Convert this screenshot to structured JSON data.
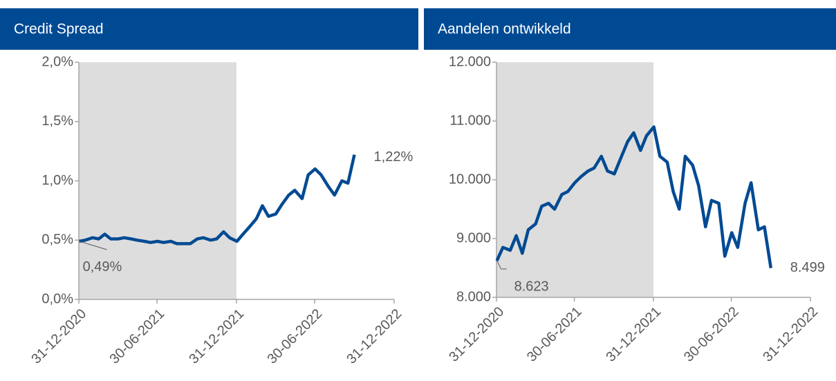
{
  "chart_data": [
    {
      "type": "line",
      "title": "Credit Spread",
      "color": "#004A93",
      "shaded_range": [
        "2020-12-31",
        "2021-12-31"
      ],
      "x": [
        "2021-01-01",
        "2021-01-15",
        "2021-02-01",
        "2021-02-15",
        "2021-03-01",
        "2021-03-15",
        "2021-04-01",
        "2021-04-15",
        "2021-05-01",
        "2021-05-15",
        "2021-06-01",
        "2021-06-15",
        "2021-07-01",
        "2021-07-15",
        "2021-08-01",
        "2021-08-15",
        "2021-09-01",
        "2021-09-15",
        "2021-10-01",
        "2021-10-15",
        "2021-11-01",
        "2021-11-15",
        "2021-12-01",
        "2021-12-15",
        "2022-01-01",
        "2022-01-15",
        "2022-02-01",
        "2022-02-15",
        "2022-03-01",
        "2022-03-15",
        "2022-04-01",
        "2022-04-15",
        "2022-05-01",
        "2022-05-15",
        "2022-06-01",
        "2022-06-15",
        "2022-07-01",
        "2022-07-15",
        "2022-08-01",
        "2022-08-15",
        "2022-09-01",
        "2022-09-15",
        "2022-09-30"
      ],
      "values": [
        0.49,
        0.5,
        0.52,
        0.51,
        0.55,
        0.51,
        0.51,
        0.52,
        0.51,
        0.5,
        0.49,
        0.48,
        0.49,
        0.48,
        0.49,
        0.47,
        0.47,
        0.47,
        0.51,
        0.52,
        0.5,
        0.51,
        0.57,
        0.52,
        0.49,
        0.55,
        0.62,
        0.68,
        0.79,
        0.7,
        0.72,
        0.8,
        0.88,
        0.92,
        0.85,
        1.05,
        1.1,
        1.05,
        0.95,
        0.88,
        1.0,
        0.98,
        1.22
      ],
      "annotations": [
        {
          "text": "0,49%",
          "x": "2021-01-01",
          "y": 0.49
        },
        {
          "text": "1,22%",
          "x": "2022-09-30",
          "y": 1.22
        }
      ],
      "xlim": [
        "2020-12-31",
        "2022-12-31"
      ],
      "xticks": [
        {
          "value": "2020-12-31",
          "label": "31-12-2020"
        },
        {
          "value": "2021-06-30",
          "label": "30-06-2021"
        },
        {
          "value": "2021-12-31",
          "label": "31-12-2021"
        },
        {
          "value": "2022-06-30",
          "label": "30-06-2022"
        },
        {
          "value": "2022-12-31",
          "label": "31-12-2022"
        }
      ],
      "ylim": [
        0,
        2
      ],
      "yticks": [
        {
          "value": 0,
          "label": "0,0%"
        },
        {
          "value": 0.5,
          "label": "0,5%"
        },
        {
          "value": 1,
          "label": "1,0%"
        },
        {
          "value": 1.5,
          "label": "1,5%"
        },
        {
          "value": 2,
          "label": "2,0%"
        }
      ]
    },
    {
      "type": "line",
      "title": "Aandelen ontwikkeld",
      "color": "#004A93",
      "shaded_range": [
        "2020-12-31",
        "2021-12-31"
      ],
      "x": [
        "2021-01-01",
        "2021-01-15",
        "2021-02-01",
        "2021-02-15",
        "2021-03-01",
        "2021-03-15",
        "2021-04-01",
        "2021-04-15",
        "2021-05-01",
        "2021-05-15",
        "2021-06-01",
        "2021-06-15",
        "2021-07-01",
        "2021-07-15",
        "2021-08-01",
        "2021-08-15",
        "2021-09-01",
        "2021-09-15",
        "2021-10-01",
        "2021-10-15",
        "2021-11-01",
        "2021-11-15",
        "2021-12-01",
        "2021-12-15",
        "2022-01-01",
        "2022-01-15",
        "2022-02-01",
        "2022-02-15",
        "2022-03-01",
        "2022-03-15",
        "2022-04-01",
        "2022-04-15",
        "2022-05-01",
        "2022-05-15",
        "2022-06-01",
        "2022-06-15",
        "2022-07-01",
        "2022-07-15",
        "2022-08-01",
        "2022-08-15",
        "2022-09-01",
        "2022-09-15",
        "2022-09-30"
      ],
      "values": [
        8623,
        8850,
        8800,
        9050,
        8750,
        9150,
        9250,
        9550,
        9600,
        9500,
        9750,
        9800,
        9950,
        10050,
        10150,
        10200,
        10400,
        10150,
        10100,
        10350,
        10650,
        10800,
        10500,
        10750,
        10900,
        10400,
        10300,
        9800,
        9500,
        10400,
        10250,
        9900,
        9200,
        9650,
        9600,
        8700,
        9100,
        8850,
        9600,
        9950,
        9150,
        9200,
        8499
      ],
      "annotations": [
        {
          "text": "8.623",
          "x": "2021-01-01",
          "y": 8623
        },
        {
          "text": "8.499",
          "x": "2022-09-30",
          "y": 8499
        }
      ],
      "xlim": [
        "2020-12-31",
        "2022-12-31"
      ],
      "xticks": [
        {
          "value": "2020-12-31",
          "label": "31-12-2020"
        },
        {
          "value": "2021-06-30",
          "label": "30-06-2021"
        },
        {
          "value": "2021-12-31",
          "label": "31-12-2021"
        },
        {
          "value": "2022-06-30",
          "label": "30-06-2022"
        },
        {
          "value": "2022-12-31",
          "label": "31-12-2022"
        }
      ],
      "ylim": [
        8000,
        12000
      ],
      "yticks": [
        {
          "value": 8000,
          "label": "8.000"
        },
        {
          "value": 9000,
          "label": "9.000"
        },
        {
          "value": 10000,
          "label": "10.000"
        },
        {
          "value": 11000,
          "label": "11.000"
        },
        {
          "value": 12000,
          "label": "12.000"
        }
      ]
    }
  ]
}
